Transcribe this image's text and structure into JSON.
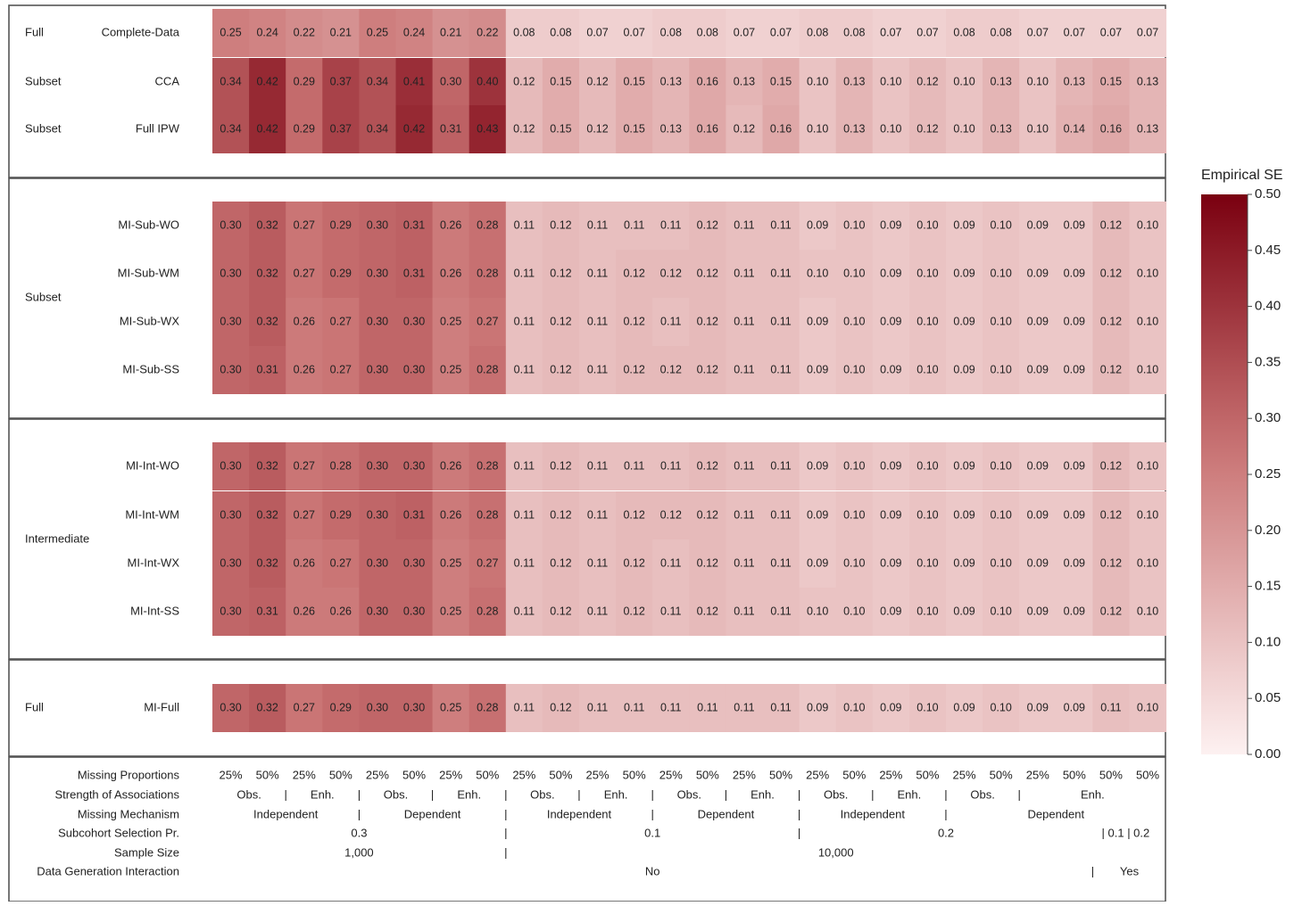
{
  "chart_data": {
    "type": "heatmap",
    "legend_title": "Empirical SE",
    "colorbar_ticks": [
      "0.50",
      "0.45",
      "0.40",
      "0.35",
      "0.30",
      "0.25",
      "0.20",
      "0.15",
      "0.10",
      "0.05",
      "0.00"
    ],
    "color_range": [
      0,
      0.5
    ],
    "colors": {
      "low": "#fdf1f1",
      "high": "#7a0010",
      "panel_border": "#555555"
    },
    "rows": [
      {
        "group": "Full",
        "method": "Complete-Data",
        "values": [
          0.25,
          0.24,
          0.22,
          0.21,
          0.25,
          0.24,
          0.21,
          0.22,
          0.08,
          0.08,
          0.07,
          0.07,
          0.08,
          0.08,
          0.07,
          0.07,
          0.08,
          0.08,
          0.07,
          0.07,
          0.08,
          0.08,
          0.07,
          0.07,
          0.07,
          0.07
        ]
      },
      {
        "group": "Subset",
        "method": "CCA",
        "values": [
          0.34,
          0.42,
          0.29,
          0.37,
          0.34,
          0.41,
          0.3,
          0.4,
          0.12,
          0.15,
          0.12,
          0.15,
          0.13,
          0.16,
          0.13,
          0.15,
          0.1,
          0.13,
          0.1,
          0.12,
          0.1,
          0.13,
          0.1,
          0.13,
          0.15,
          0.13
        ]
      },
      {
        "group": "Subset",
        "method": "Full IPW",
        "values": [
          0.34,
          0.42,
          0.29,
          0.37,
          0.34,
          0.42,
          0.31,
          0.43,
          0.12,
          0.15,
          0.12,
          0.15,
          0.13,
          0.16,
          0.12,
          0.16,
          0.1,
          0.13,
          0.1,
          0.12,
          0.1,
          0.13,
          0.1,
          0.14,
          0.16,
          0.13
        ]
      },
      {
        "group": "Subset",
        "method": "MI-Sub-WO",
        "values": [
          0.3,
          0.32,
          0.27,
          0.29,
          0.3,
          0.31,
          0.26,
          0.28,
          0.11,
          0.12,
          0.11,
          0.11,
          0.11,
          0.12,
          0.11,
          0.11,
          0.09,
          0.1,
          0.09,
          0.1,
          0.09,
          0.1,
          0.09,
          0.09,
          0.12,
          0.1
        ]
      },
      {
        "group": "Subset",
        "method": "MI-Sub-WM",
        "values": [
          0.3,
          0.32,
          0.27,
          0.29,
          0.3,
          0.31,
          0.26,
          0.28,
          0.11,
          0.12,
          0.11,
          0.12,
          0.12,
          0.12,
          0.11,
          0.11,
          0.1,
          0.1,
          0.09,
          0.1,
          0.09,
          0.1,
          0.09,
          0.09,
          0.12,
          0.1
        ]
      },
      {
        "group": "Subset",
        "method": "MI-Sub-WX",
        "values": [
          0.3,
          0.32,
          0.26,
          0.27,
          0.3,
          0.3,
          0.25,
          0.27,
          0.11,
          0.12,
          0.11,
          0.12,
          0.11,
          0.12,
          0.11,
          0.11,
          0.09,
          0.1,
          0.09,
          0.1,
          0.09,
          0.1,
          0.09,
          0.09,
          0.12,
          0.1
        ]
      },
      {
        "group": "Subset",
        "method": "MI-Sub-SS",
        "values": [
          0.3,
          0.31,
          0.26,
          0.27,
          0.3,
          0.3,
          0.25,
          0.28,
          0.11,
          0.12,
          0.11,
          0.12,
          0.12,
          0.12,
          0.11,
          0.11,
          0.09,
          0.1,
          0.09,
          0.1,
          0.09,
          0.1,
          0.09,
          0.09,
          0.12,
          0.1
        ]
      },
      {
        "group": "Intermediate",
        "method": "MI-Int-WO",
        "values": [
          0.3,
          0.32,
          0.27,
          0.28,
          0.3,
          0.3,
          0.26,
          0.28,
          0.11,
          0.12,
          0.11,
          0.11,
          0.11,
          0.12,
          0.11,
          0.11,
          0.09,
          0.1,
          0.09,
          0.1,
          0.09,
          0.1,
          0.09,
          0.09,
          0.12,
          0.1
        ]
      },
      {
        "group": "Intermediate",
        "method": "MI-Int-WM",
        "values": [
          0.3,
          0.32,
          0.27,
          0.29,
          0.3,
          0.31,
          0.26,
          0.28,
          0.11,
          0.12,
          0.11,
          0.12,
          0.12,
          0.12,
          0.11,
          0.11,
          0.09,
          0.1,
          0.09,
          0.1,
          0.09,
          0.1,
          0.09,
          0.09,
          0.12,
          0.1
        ]
      },
      {
        "group": "Intermediate",
        "method": "MI-Int-WX",
        "values": [
          0.3,
          0.32,
          0.26,
          0.27,
          0.3,
          0.3,
          0.25,
          0.27,
          0.11,
          0.12,
          0.11,
          0.12,
          0.11,
          0.12,
          0.11,
          0.11,
          0.09,
          0.1,
          0.09,
          0.1,
          0.09,
          0.1,
          0.09,
          0.09,
          0.12,
          0.1
        ]
      },
      {
        "group": "Intermediate",
        "method": "MI-Int-SS",
        "values": [
          0.3,
          0.31,
          0.26,
          0.26,
          0.3,
          0.3,
          0.25,
          0.28,
          0.11,
          0.12,
          0.11,
          0.12,
          0.11,
          0.12,
          0.11,
          0.11,
          0.1,
          0.1,
          0.09,
          0.1,
          0.09,
          0.1,
          0.09,
          0.09,
          0.12,
          0.1
        ]
      },
      {
        "group": "Full",
        "method": "MI-Full",
        "values": [
          0.3,
          0.32,
          0.27,
          0.29,
          0.3,
          0.3,
          0.25,
          0.28,
          0.11,
          0.12,
          0.11,
          0.11,
          0.11,
          0.11,
          0.11,
          0.11,
          0.09,
          0.1,
          0.09,
          0.1,
          0.09,
          0.1,
          0.09,
          0.09,
          0.11,
          0.1
        ]
      }
    ],
    "panels": [
      {
        "rows": [
          0,
          1,
          2
        ],
        "group_labels": [
          {
            "text": "Full",
            "row": 0
          },
          {
            "text": "Subset",
            "row": 1
          },
          {
            "text": "Subset",
            "row": 2
          }
        ]
      },
      {
        "rows": [
          3,
          4,
          5,
          6
        ],
        "group_labels": [
          {
            "text": "Subset",
            "row": 4.5
          }
        ]
      },
      {
        "rows": [
          7,
          8,
          9,
          10
        ],
        "group_labels": [
          {
            "text": "Intermediate",
            "row": 8.5
          }
        ]
      },
      {
        "rows": [
          11
        ],
        "group_labels": [
          {
            "text": "Full",
            "row": 11
          }
        ]
      }
    ],
    "bottom_rows": [
      {
        "label": "Missing Proportions",
        "items": [
          {
            "t": "25%",
            "c": 0
          },
          {
            "t": "50%",
            "c": 1
          },
          {
            "t": "25%",
            "c": 2
          },
          {
            "t": "50%",
            "c": 3
          },
          {
            "t": "25%",
            "c": 4
          },
          {
            "t": "50%",
            "c": 5
          },
          {
            "t": "25%",
            "c": 6
          },
          {
            "t": "50%",
            "c": 7
          },
          {
            "t": "25%",
            "c": 8
          },
          {
            "t": "50%",
            "c": 9
          },
          {
            "t": "25%",
            "c": 10
          },
          {
            "t": "50%",
            "c": 11
          },
          {
            "t": "25%",
            "c": 12
          },
          {
            "t": "50%",
            "c": 13
          },
          {
            "t": "25%",
            "c": 14
          },
          {
            "t": "50%",
            "c": 15
          },
          {
            "t": "25%",
            "c": 16
          },
          {
            "t": "50%",
            "c": 17
          },
          {
            "t": "25%",
            "c": 18
          },
          {
            "t": "50%",
            "c": 19
          },
          {
            "t": "25%",
            "c": 20
          },
          {
            "t": "50%",
            "c": 21
          },
          {
            "t": "25%",
            "c": 22
          },
          {
            "t": "50%",
            "c": 23
          },
          {
            "t": "50%",
            "c": 24
          },
          {
            "t": "50%",
            "c": 25
          }
        ]
      },
      {
        "label": "Strength of Associations",
        "items": [
          {
            "t": "Obs.",
            "c": 0.5
          },
          {
            "t": "|",
            "c": 1.5
          },
          {
            "t": "Enh.",
            "c": 2.5
          },
          {
            "t": "|",
            "c": 3.5
          },
          {
            "t": "Obs.",
            "c": 4.5
          },
          {
            "t": "|",
            "c": 5.5
          },
          {
            "t": "Enh.",
            "c": 6.5
          },
          {
            "t": "|",
            "c": 7.5
          },
          {
            "t": "Obs.",
            "c": 8.5
          },
          {
            "t": "|",
            "c": 9.5
          },
          {
            "t": "Enh.",
            "c": 10.5
          },
          {
            "t": "|",
            "c": 11.5
          },
          {
            "t": "Obs.",
            "c": 12.5
          },
          {
            "t": "|",
            "c": 13.5
          },
          {
            "t": "Enh.",
            "c": 14.5
          },
          {
            "t": "|",
            "c": 15.5
          },
          {
            "t": "Obs.",
            "c": 16.5
          },
          {
            "t": "|",
            "c": 17.5
          },
          {
            "t": "Enh.",
            "c": 18.5
          },
          {
            "t": "|",
            "c": 19.5
          },
          {
            "t": "Obs.",
            "c": 20.5
          },
          {
            "t": "|",
            "c": 21.5
          },
          {
            "t": "Enh.",
            "c": 23.5
          }
        ]
      },
      {
        "label": "Missing Mechanism",
        "items": [
          {
            "t": "Independent",
            "c": 1.5
          },
          {
            "t": "|",
            "c": 3.5
          },
          {
            "t": "Dependent",
            "c": 5.5
          },
          {
            "t": "|",
            "c": 7.5
          },
          {
            "t": "Independent",
            "c": 9.5
          },
          {
            "t": "|",
            "c": 11.5
          },
          {
            "t": "Dependent",
            "c": 13.5
          },
          {
            "t": "|",
            "c": 15.5
          },
          {
            "t": "Independent",
            "c": 17.5
          },
          {
            "t": "|",
            "c": 19.5
          },
          {
            "t": "Dependent",
            "c": 22.5
          }
        ]
      },
      {
        "label": "Subcohort Selection Pr.",
        "items": [
          {
            "t": "0.3",
            "c": 3.5
          },
          {
            "t": "|",
            "c": 7.5
          },
          {
            "t": "0.1",
            "c": 11.5
          },
          {
            "t": "|",
            "c": 15.5
          },
          {
            "t": "0.2",
            "c": 19.5
          },
          {
            "t": "| 0.1 | 0.2",
            "c": 24.4
          }
        ]
      },
      {
        "label": "Sample Size",
        "items": [
          {
            "t": "1,000",
            "c": 3.5
          },
          {
            "t": "|",
            "c": 7.5
          },
          {
            "t": "10,000",
            "c": 16.5
          }
        ]
      },
      {
        "label": "Data Generation Interaction",
        "items": [
          {
            "t": "No",
            "c": 11.5
          },
          {
            "t": "|",
            "c": 23.5
          },
          {
            "t": "Yes",
            "c": 24.5
          }
        ]
      }
    ]
  }
}
